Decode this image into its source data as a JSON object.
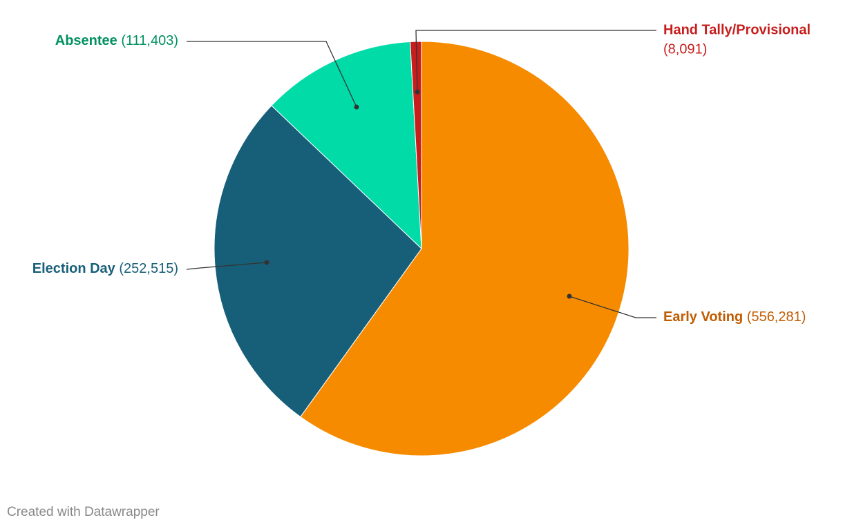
{
  "chart_data": {
    "type": "pie",
    "categories": [
      "Early Voting",
      "Election Day",
      "Absentee",
      "Hand Tally/Provisional"
    ],
    "values": [
      556281,
      252515,
      111403,
      8091
    ],
    "value_labels": [
      "(556,281)",
      "(252,515)",
      "(111,403)",
      "(8,091)"
    ],
    "colors": [
      "#f68b00",
      "#175f79",
      "#00dba8",
      "#c71e1d"
    ],
    "label_colors": [
      "#c05c00",
      "#175f79",
      "#009060",
      "#c71e1d"
    ],
    "credit": "Created with Datawrapper"
  }
}
